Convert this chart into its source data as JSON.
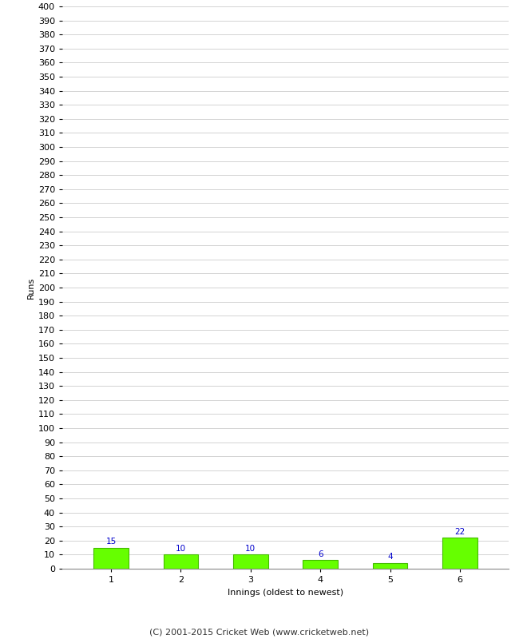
{
  "categories": [
    "1",
    "2",
    "3",
    "4",
    "5",
    "6"
  ],
  "values": [
    15,
    10,
    10,
    6,
    4,
    22
  ],
  "bar_color": "#66ff00",
  "bar_edge_color": "#44bb00",
  "label_color": "#0000cc",
  "xlabel": "Innings (oldest to newest)",
  "ylabel": "Runs",
  "ylim": [
    0,
    400
  ],
  "ytick_step": 10,
  "background_color": "#ffffff",
  "grid_color": "#cccccc",
  "footer": "(C) 2001-2015 Cricket Web (www.cricketweb.net)",
  "label_fontsize": 7.5,
  "axis_tick_fontsize": 8,
  "axis_label_fontsize": 8,
  "footer_fontsize": 8
}
